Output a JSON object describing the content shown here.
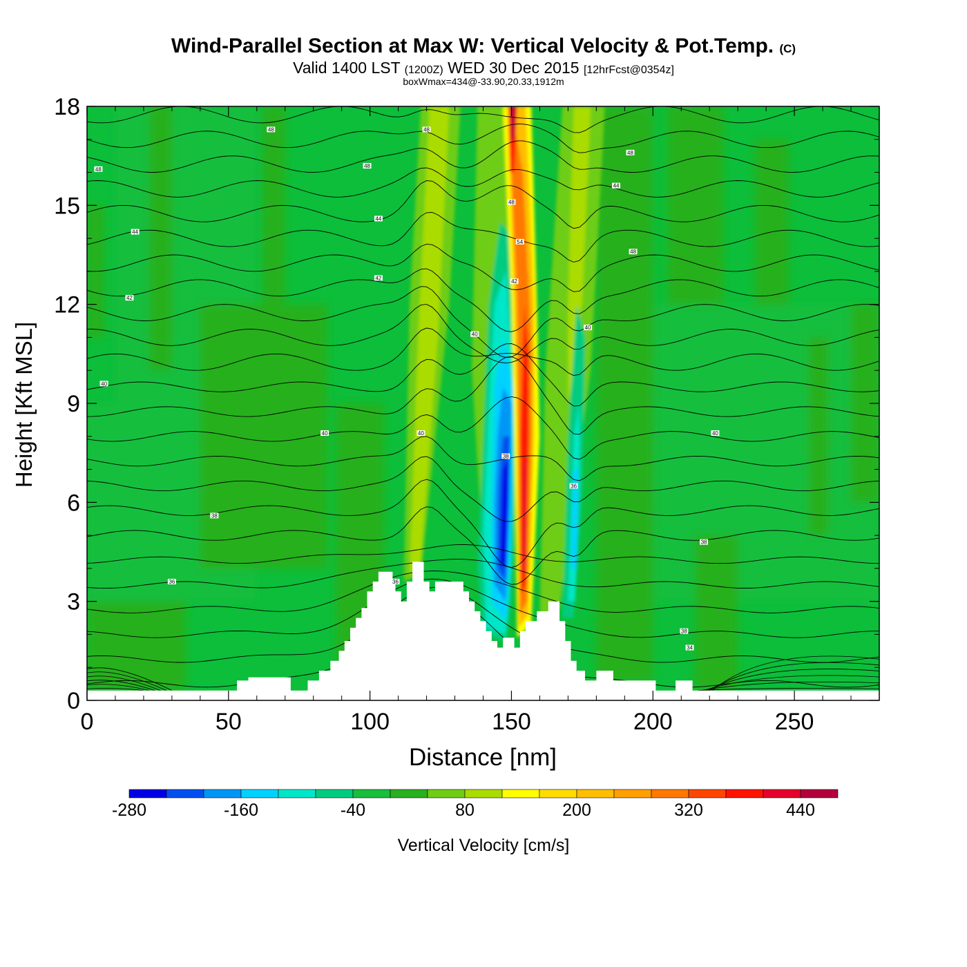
{
  "title": {
    "main": "Wind-Parallel Section at Max W: Vertical Velocity & Pot.Temp.",
    "copyright": "(C)",
    "valid_prefix": "Valid 1400 LST",
    "valid_utc": "(1200Z)",
    "valid_date": "WED 30 Dec 2015",
    "forecast": "[12hrFcst@0354z]",
    "boxwmax": "boxWmax=434@-33.90,20.33,1912m"
  },
  "chart_data": {
    "type": "heatmap",
    "xlabel": "Distance [nm]",
    "ylabel": "Height [Kft MSL]",
    "xlim": [
      0,
      280
    ],
    "ylim": [
      0,
      18
    ],
    "xticks": [
      0,
      50,
      100,
      150,
      200,
      250
    ],
    "yticks": [
      0,
      3,
      6,
      9,
      12,
      15,
      18
    ],
    "colorbar": {
      "label": "Vertical Velocity [cm/s]",
      "tick_labels": [
        "-280",
        "-160",
        "-40",
        "80",
        "200",
        "320",
        "440"
      ],
      "tick_values": [
        -280,
        -160,
        -40,
        80,
        200,
        320,
        440
      ],
      "bins": [
        -280,
        -240,
        -200,
        -160,
        -120,
        -80,
        -40,
        0,
        40,
        80,
        120,
        160,
        200,
        240,
        280,
        320,
        360,
        400,
        440,
        480
      ],
      "colors": [
        "#0000e6",
        "#0050f0",
        "#0096f5",
        "#00d2ff",
        "#00e6c8",
        "#00cc80",
        "#19be3c",
        "#28b01e",
        "#6ecd14",
        "#aadc00",
        "#ffff00",
        "#ffdc00",
        "#ffbe00",
        "#ffa000",
        "#ff7800",
        "#ff4600",
        "#ff1400",
        "#e6002d",
        "#b4003c"
      ]
    },
    "features": [
      {
        "kind": "updraft",
        "x": 120,
        "y_range": [
          3.5,
          12
        ],
        "peak_cm_s": 200
      },
      {
        "kind": "downdraft",
        "x": 148,
        "y_range": [
          2,
          14
        ],
        "peak_cm_s": -250
      },
      {
        "kind": "updraft",
        "x": 153,
        "y_range": [
          2,
          18
        ],
        "peak_cm_s": 434
      },
      {
        "kind": "downdraft",
        "x": 172,
        "y_range": [
          3,
          11
        ],
        "peak_cm_s": -150
      },
      {
        "kind": "updraft",
        "x": 175,
        "y_range": [
          11,
          18
        ],
        "peak_cm_s": 180
      },
      {
        "kind": "updraft",
        "x": 125,
        "y_range": [
          12,
          18
        ],
        "peak_cm_s": 120
      }
    ],
    "terrain": [
      [
        0,
        0.3
      ],
      [
        53,
        0.3
      ],
      [
        53,
        0.6
      ],
      [
        57,
        0.6
      ],
      [
        57,
        0.7
      ],
      [
        72,
        0.7
      ],
      [
        72,
        0.3
      ],
      [
        78,
        0.3
      ],
      [
        78,
        0.6
      ],
      [
        82,
        0.6
      ],
      [
        82,
        0.9
      ],
      [
        86,
        0.9
      ],
      [
        86,
        1.2
      ],
      [
        89,
        1.2
      ],
      [
        89,
        1.5
      ],
      [
        91,
        1.5
      ],
      [
        91,
        1.8
      ],
      [
        93,
        1.8
      ],
      [
        93,
        2.2
      ],
      [
        95,
        2.2
      ],
      [
        95,
        2.5
      ],
      [
        97,
        2.5
      ],
      [
        97,
        2.8
      ],
      [
        99,
        2.8
      ],
      [
        99,
        3.3
      ],
      [
        101,
        3.3
      ],
      [
        101,
        3.6
      ],
      [
        103,
        3.6
      ],
      [
        103,
        3.9
      ],
      [
        108,
        3.9
      ],
      [
        108,
        3.6
      ],
      [
        109,
        3.6
      ],
      [
        109,
        3.3
      ],
      [
        111,
        3.3
      ],
      [
        111,
        3.0
      ],
      [
        113,
        3.0
      ],
      [
        113,
        3.6
      ],
      [
        115,
        3.6
      ],
      [
        115,
        4.2
      ],
      [
        119,
        4.2
      ],
      [
        119,
        3.6
      ],
      [
        121,
        3.6
      ],
      [
        121,
        3.3
      ],
      [
        123,
        3.3
      ],
      [
        123,
        3.6
      ],
      [
        133,
        3.6
      ],
      [
        133,
        3.3
      ],
      [
        135,
        3.3
      ],
      [
        135,
        3.0
      ],
      [
        137,
        3.0
      ],
      [
        137,
        2.7
      ],
      [
        139,
        2.7
      ],
      [
        139,
        2.4
      ],
      [
        141,
        2.4
      ],
      [
        141,
        2.1
      ],
      [
        143,
        2.1
      ],
      [
        143,
        1.8
      ],
      [
        145,
        1.8
      ],
      [
        145,
        1.6
      ],
      [
        147,
        1.6
      ],
      [
        147,
        1.9
      ],
      [
        151,
        1.9
      ],
      [
        151,
        1.6
      ],
      [
        153,
        1.6
      ],
      [
        153,
        2.1
      ],
      [
        155,
        2.1
      ],
      [
        155,
        2.4
      ],
      [
        159,
        2.4
      ],
      [
        159,
        2.7
      ],
      [
        163,
        2.7
      ],
      [
        163,
        3.0
      ],
      [
        167,
        3.0
      ],
      [
        167,
        2.4
      ],
      [
        169,
        2.4
      ],
      [
        169,
        1.8
      ],
      [
        171,
        1.8
      ],
      [
        171,
        1.2
      ],
      [
        173,
        1.2
      ],
      [
        173,
        0.9
      ],
      [
        176,
        0.9
      ],
      [
        176,
        0.6
      ],
      [
        180,
        0.6
      ],
      [
        180,
        0.9
      ],
      [
        186,
        0.9
      ],
      [
        186,
        0.6
      ],
      [
        201,
        0.6
      ],
      [
        201,
        0.3
      ],
      [
        208,
        0.3
      ],
      [
        208,
        0.6
      ],
      [
        214,
        0.6
      ],
      [
        214,
        0.3
      ],
      [
        280,
        0.3
      ]
    ],
    "isentrope_labels": [
      {
        "text": "48",
        "x": 65,
        "y": 17.3
      },
      {
        "text": "48",
        "x": 4,
        "y": 16.1
      },
      {
        "text": "48",
        "x": 120,
        "y": 17.3
      },
      {
        "text": "48",
        "x": 99,
        "y": 16.2
      },
      {
        "text": "48",
        "x": 192,
        "y": 16.6
      },
      {
        "text": "48",
        "x": 150,
        "y": 15.1
      },
      {
        "text": "44",
        "x": 187,
        "y": 15.6
      },
      {
        "text": "44",
        "x": 103,
        "y": 14.6
      },
      {
        "text": "44",
        "x": 17,
        "y": 14.2
      },
      {
        "text": "48",
        "x": 193,
        "y": 13.6
      },
      {
        "text": "54",
        "x": 153,
        "y": 13.9
      },
      {
        "text": "42",
        "x": 103,
        "y": 12.8
      },
      {
        "text": "42",
        "x": 151,
        "y": 12.7
      },
      {
        "text": "42",
        "x": 15,
        "y": 12.2
      },
      {
        "text": "40",
        "x": 137,
        "y": 11.1
      },
      {
        "text": "40",
        "x": 177,
        "y": 11.3
      },
      {
        "text": "40",
        "x": 6,
        "y": 9.6
      },
      {
        "text": "40",
        "x": 84,
        "y": 8.1
      },
      {
        "text": "40",
        "x": 118,
        "y": 8.1
      },
      {
        "text": "40",
        "x": 222,
        "y": 8.1
      },
      {
        "text": "38",
        "x": 148,
        "y": 7.4
      },
      {
        "text": "36",
        "x": 172,
        "y": 6.5
      },
      {
        "text": "38",
        "x": 45,
        "y": 5.6
      },
      {
        "text": "38",
        "x": 218,
        "y": 4.8
      },
      {
        "text": "36",
        "x": 30,
        "y": 3.6
      },
      {
        "text": "36",
        "x": 109,
        "y": 3.6
      },
      {
        "text": "38",
        "x": 211,
        "y": 2.1
      },
      {
        "text": "34",
        "x": 213,
        "y": 1.6
      }
    ]
  }
}
